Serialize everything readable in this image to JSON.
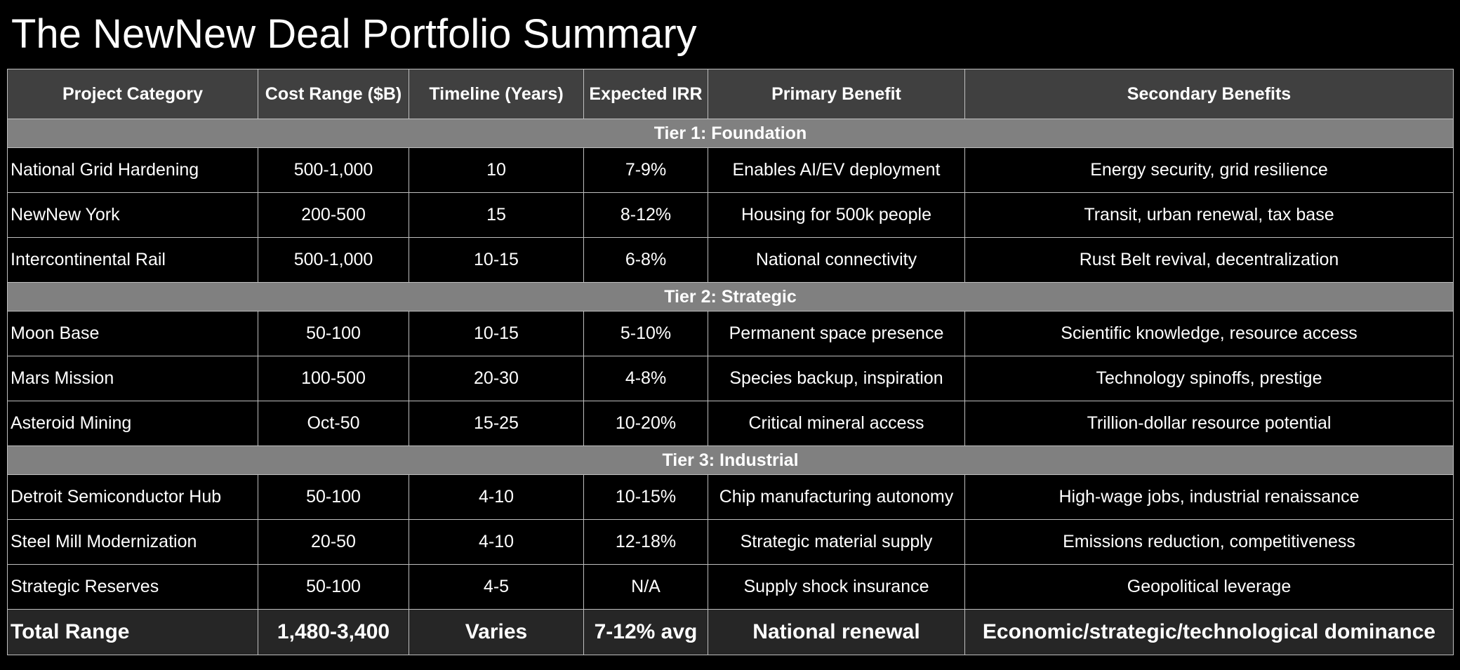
{
  "title": "The NewNew Deal Portfolio Summary",
  "colors": {
    "background": "#000000",
    "header_bg": "#404040",
    "tier_bg": "#808080",
    "total_bg": "#262626",
    "border": "#bfbfbf",
    "text": "#ffffff"
  },
  "table": {
    "headers": [
      "Project Category",
      "Cost Range ($B)",
      "Timeline (Years)",
      "Expected IRR",
      "Primary Benefit",
      "Secondary Benefits"
    ],
    "tiers": [
      {
        "label": "Tier 1: Foundation",
        "rows": [
          [
            "National Grid Hardening",
            "500-1,000",
            "10",
            "7-9%",
            "Enables AI/EV deployment",
            "Energy security, grid resilience"
          ],
          [
            "NewNew York",
            "200-500",
            "15",
            "8-12%",
            "Housing for 500k people",
            "Transit, urban renewal, tax base"
          ],
          [
            "Intercontinental Rail",
            "500-1,000",
            "10-15",
            "6-8%",
            "National connectivity",
            "Rust Belt revival, decentralization"
          ]
        ]
      },
      {
        "label": "Tier 2: Strategic",
        "rows": [
          [
            "Moon Base",
            "50-100",
            "10-15",
            "5-10%",
            "Permanent space presence",
            "Scientific knowledge, resource access"
          ],
          [
            "Mars Mission",
            "100-500",
            "20-30",
            "4-8%",
            "Species backup, inspiration",
            "Technology spinoffs, prestige"
          ],
          [
            "Asteroid Mining",
            "Oct-50",
            "15-25",
            "10-20%",
            "Critical mineral access",
            "Trillion-dollar resource potential"
          ]
        ]
      },
      {
        "label": "Tier 3: Industrial",
        "rows": [
          [
            "Detroit Semiconductor Hub",
            "50-100",
            "4-10",
            "10-15%",
            "Chip manufacturing autonomy",
            "High-wage jobs, industrial renaissance"
          ],
          [
            "Steel Mill Modernization",
            "20-50",
            "4-10",
            "12-18%",
            "Strategic material supply",
            "Emissions reduction, competitiveness"
          ],
          [
            "Strategic Reserves",
            "50-100",
            "4-5",
            "N/A",
            "Supply shock insurance",
            "Geopolitical leverage"
          ]
        ]
      }
    ],
    "total": [
      "Total Range",
      "1,480-3,400",
      "Varies",
      "7-12% avg",
      "National renewal",
      "Economic/strategic/technological dominance"
    ]
  }
}
